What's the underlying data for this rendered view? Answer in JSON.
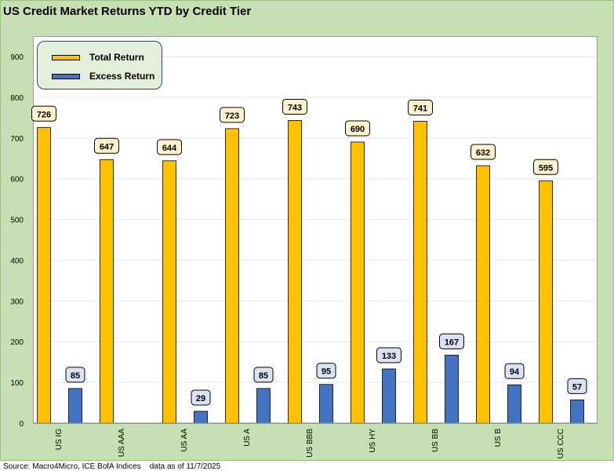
{
  "title": "US Credit Market Returns YTD by Credit Tier",
  "source_note": "Source: Macro4Micro, ICE BofA Indices    data as of 11/7/2025",
  "colors": {
    "frame_bg": "#c6e0b4",
    "total_return": "#ffc000",
    "excess_return": "#4472c4",
    "label_total_bg": "#fff2cc",
    "label_excess_bg": "#dae3f3",
    "gridline": "#e6e6e6"
  },
  "chart_data": {
    "type": "bar",
    "title": "US Credit Market Returns YTD by Credit Tier",
    "xlabel": "",
    "ylabel": "",
    "ylim": [
      0,
      900
    ],
    "yticks": [
      0,
      100,
      200,
      300,
      400,
      500,
      600,
      700,
      800,
      900
    ],
    "grid": true,
    "legend_position": "top-left",
    "categories": [
      "US IG",
      "US AAA",
      "US AA",
      "US A",
      "US BBB",
      "US HY",
      "US BB",
      "US B",
      "US CCC"
    ],
    "series": [
      {
        "name": "Total Return",
        "values": [
          726,
          647,
          644,
          723,
          743,
          690,
          741,
          632,
          595
        ],
        "color": "#ffc000"
      },
      {
        "name": "Excess Return",
        "values": [
          85,
          null,
          29,
          85,
          95,
          133,
          167,
          94,
          57
        ],
        "color": "#4472c4"
      }
    ]
  }
}
